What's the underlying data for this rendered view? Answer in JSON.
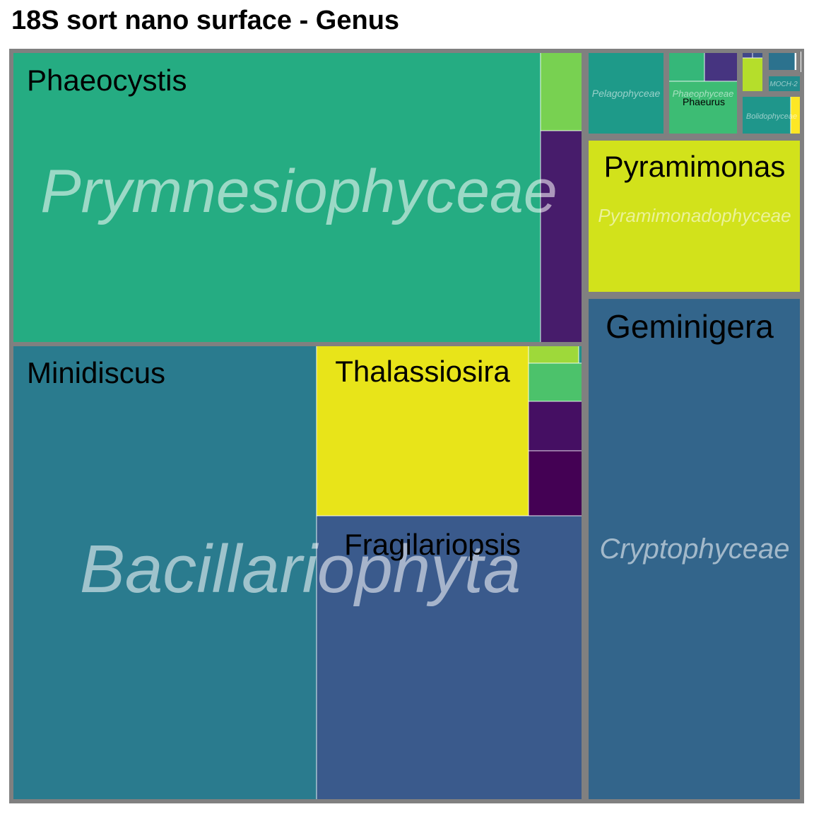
{
  "chart_data": {
    "type": "treemap",
    "title": "18S sort nano surface - Genus",
    "colors": {
      "border": "#808080",
      "genus_label": "#000000",
      "group_label": "#ffffff"
    },
    "groups": [
      {
        "name": "Prymnesiophyceae",
        "genera": [
          {
            "label": "Phaeocystis",
            "value": 303,
            "color": "#25ac82"
          },
          {
            "label": "",
            "value": 30,
            "color": "#78d151"
          },
          {
            "label": "",
            "value": 79,
            "color": "#471c6b"
          }
        ]
      },
      {
        "name": "Bacillariophyta",
        "genera": [
          {
            "label": "Minidiscus",
            "value": 283,
            "color": "#2a7b8e"
          },
          {
            "label": "Thalassiosira",
            "value": 74,
            "color": "#e8e419"
          },
          {
            "label": "",
            "value": 2.5,
            "color": "#9ed93a"
          },
          {
            "label": "",
            "value": 0.3,
            "color": "#21918c"
          },
          {
            "label": "",
            "value": 5.4,
            "color": "#4cc26b"
          },
          {
            "label": "",
            "value": 7.1,
            "color": "#450f63"
          },
          {
            "label": "",
            "value": 6.9,
            "color": "#440154"
          },
          {
            "label": "Fragilariopsis",
            "value": 155,
            "color": "#3a5a8c"
          }
        ]
      },
      {
        "name": "Cryptophyceae",
        "genera": [
          {
            "label": "Geminigera",
            "value": 234,
            "color": "#33658b"
          }
        ]
      },
      {
        "name": "Pyramimonadophyceae",
        "genera": [
          {
            "label": "Pyramimonas",
            "value": 76,
            "color": "#d2e21b"
          }
        ]
      },
      {
        "name": "Pelagophyceae",
        "genera": [
          {
            "label": "",
            "value": 14,
            "color": "#1e9a89"
          }
        ]
      },
      {
        "name": "Phaeophyceae",
        "genera": [
          {
            "label": "",
            "value": 2.7,
            "color": "#35b779"
          },
          {
            "label": "",
            "value": 2.4,
            "color": "#463480"
          },
          {
            "label": "Phaeurus",
            "value": 3.4,
            "color": "#3dbc74"
          }
        ]
      },
      {
        "name": "Bolidophyceae",
        "genera": [
          {
            "label": "",
            "value": 2.7,
            "color": "#1f968b"
          },
          {
            "label": "",
            "value": 0.3,
            "color": "#fde725"
          }
        ]
      },
      {
        "name": "MOCH-2",
        "genera": [
          {
            "label": "",
            "value": 0.5,
            "color": "#228c8d"
          }
        ]
      },
      {
        "name": "",
        "genera": [
          {
            "label": "",
            "value": 0.5,
            "color": "#2c728e"
          },
          {
            "label": "",
            "value": 0.05,
            "color": "#21a585"
          }
        ]
      },
      {
        "name": "",
        "genera": [
          {
            "label": "",
            "value": 0.2,
            "color": "#404688"
          },
          {
            "label": "",
            "value": 0.2,
            "color": "#3b528b"
          },
          {
            "label": "",
            "value": 0.9,
            "color": "#b5de2b"
          }
        ]
      }
    ]
  }
}
